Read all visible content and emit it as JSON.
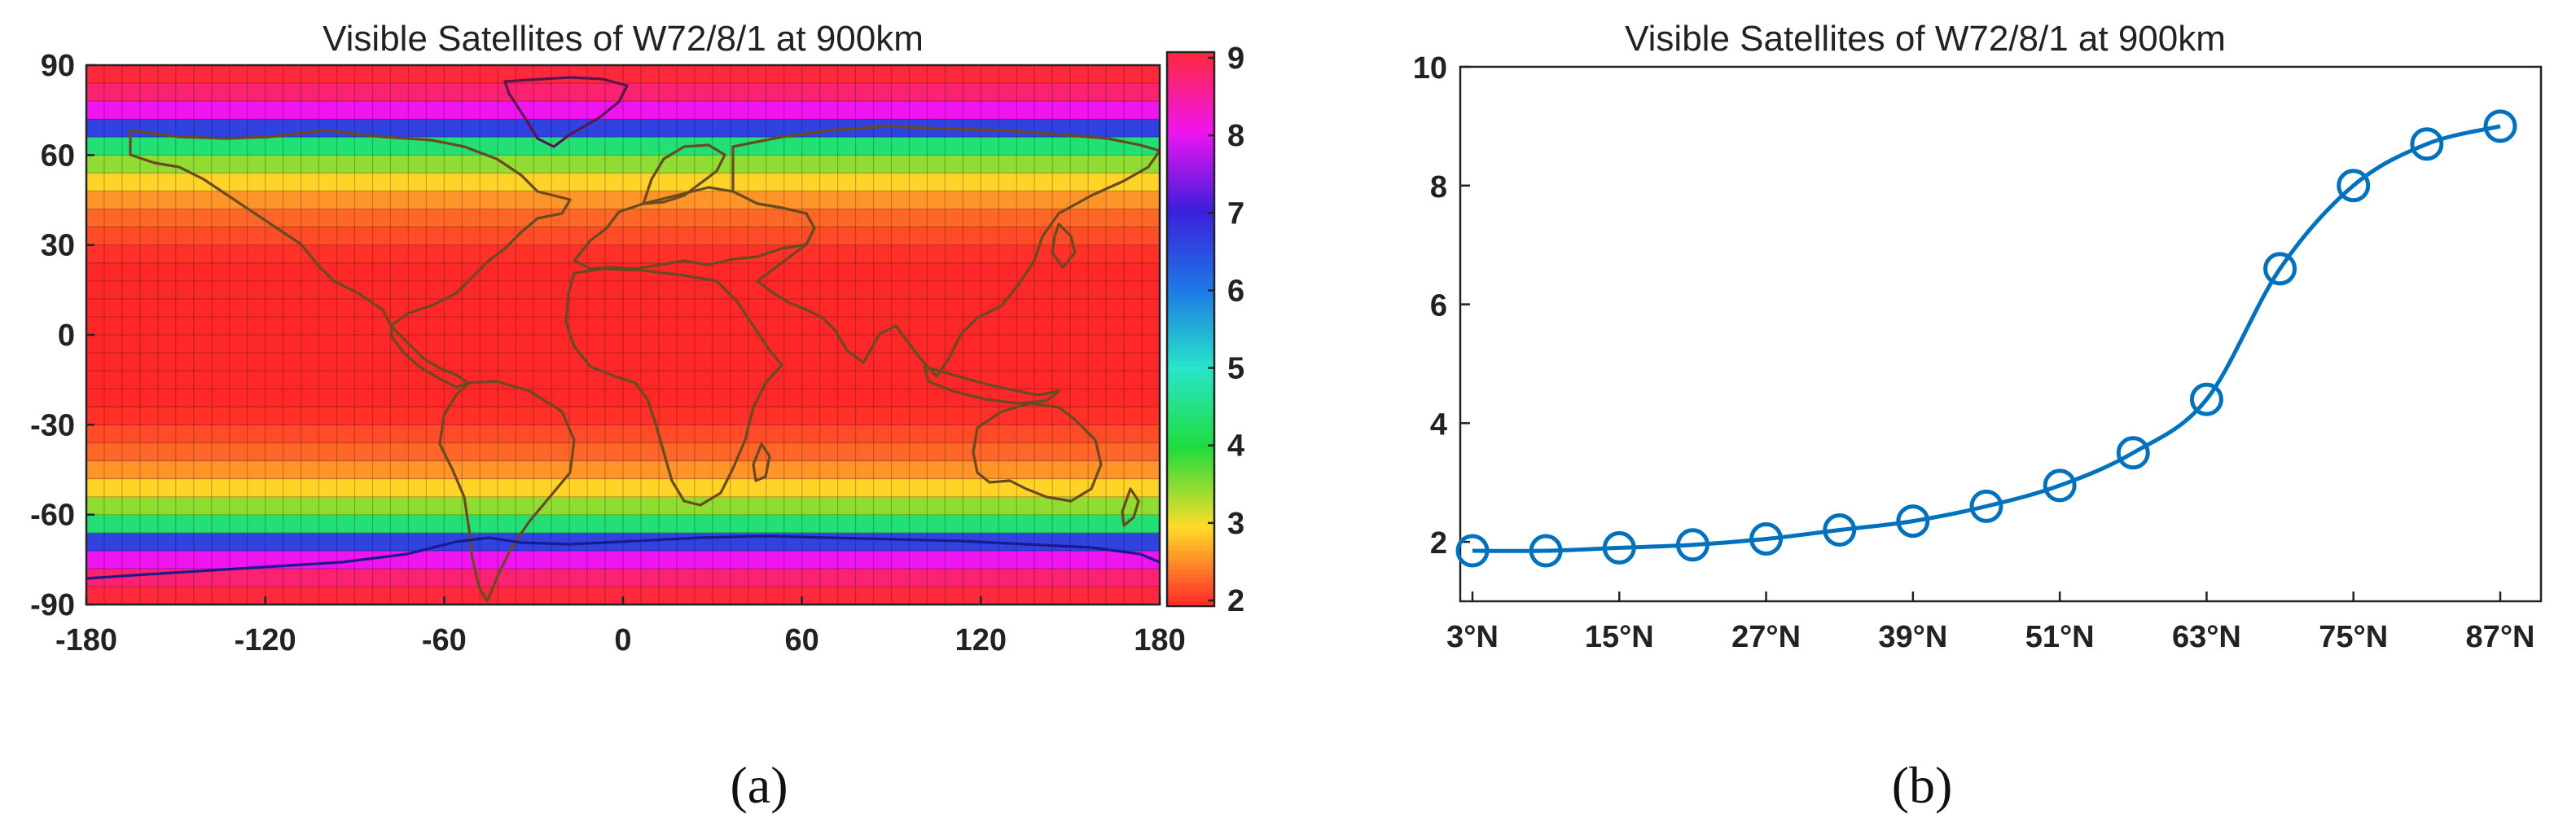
{
  "chart_data": [
    {
      "type": "heatmap",
      "title": "Visible Satellites of W72/8/1 at 900km",
      "xlabel": "",
      "ylabel": "",
      "xlim": [
        -180,
        180
      ],
      "ylim": [
        -90,
        90
      ],
      "xticks": [
        "-180",
        "-120",
        "-60",
        "0",
        "60",
        "120",
        "180"
      ],
      "yticks": [
        "90",
        "60",
        "30",
        "0",
        "-30",
        "-60",
        "-90"
      ],
      "colorbar": {
        "range": [
          2,
          9
        ],
        "ticks": [
          "9",
          "8",
          "7",
          "6",
          "5",
          "4",
          "3",
          "2"
        ]
      },
      "grid": true,
      "bands": [
        {
          "lat": [
            84,
            90
          ],
          "value": 9.0
        },
        {
          "lat": [
            78,
            84
          ],
          "value": 8.7
        },
        {
          "lat": [
            72,
            78
          ],
          "value": 8.0
        },
        {
          "lat": [
            66,
            72
          ],
          "value": 6.6
        },
        {
          "lat": [
            60,
            66
          ],
          "value": 4.4
        },
        {
          "lat": [
            54,
            60
          ],
          "value": 3.5
        },
        {
          "lat": [
            48,
            54
          ],
          "value": 2.95
        },
        {
          "lat": [
            42,
            48
          ],
          "value": 2.6
        },
        {
          "lat": [
            36,
            42
          ],
          "value": 2.35
        },
        {
          "lat": [
            30,
            36
          ],
          "value": 2.2
        },
        {
          "lat": [
            24,
            30
          ],
          "value": 2.05
        },
        {
          "lat": [
            18,
            24
          ],
          "value": 1.95
        },
        {
          "lat": [
            12,
            18
          ],
          "value": 1.9
        },
        {
          "lat": [
            6,
            12
          ],
          "value": 1.85
        },
        {
          "lat": [
            0,
            6
          ],
          "value": 1.85
        }
      ]
    },
    {
      "type": "line",
      "title": "Visible Satellites of W72/8/1 at 900km",
      "xlabel": "",
      "ylabel": "",
      "ylim": [
        1,
        10
      ],
      "yticks": [
        "2",
        "4",
        "6",
        "8",
        "10"
      ],
      "xtick_labels": [
        "3°N",
        "15°N",
        "27°N",
        "39°N",
        "51°N",
        "63°N",
        "75°N",
        "87°N"
      ],
      "grid": false,
      "series": [
        {
          "x": [
            3,
            9,
            15,
            21,
            27,
            33,
            39,
            45,
            51,
            57,
            63,
            69,
            75,
            81,
            87
          ],
          "values": [
            1.85,
            1.85,
            1.9,
            1.95,
            2.05,
            2.2,
            2.35,
            2.6,
            2.95,
            3.5,
            4.4,
            6.6,
            8.0,
            8.7,
            9.0
          ],
          "color": "#0072BD"
        }
      ]
    }
  ],
  "captions": [
    "(a)",
    "(b)"
  ]
}
